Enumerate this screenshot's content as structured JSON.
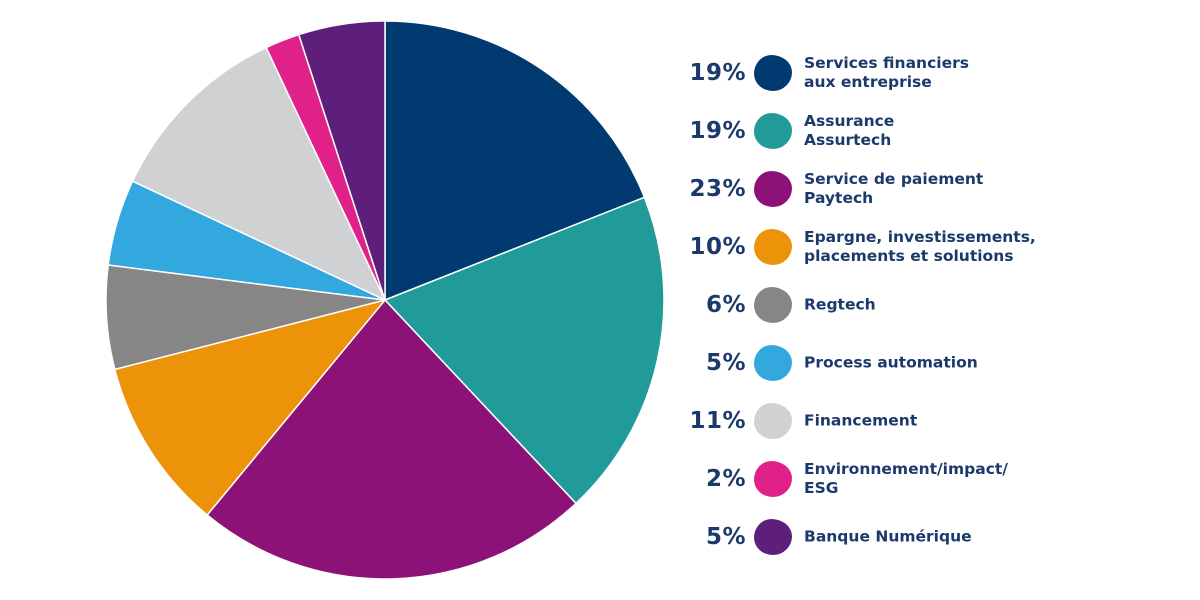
{
  "chart_data": {
    "type": "pie",
    "start": "top",
    "direction": "clockwise",
    "slices": [
      {
        "label": "Services financiers\naux entreprise",
        "pct_label": "19%",
        "value": 19,
        "color": "#003a70"
      },
      {
        "label": "Assurance\nAssurtech",
        "pct_label": "19%",
        "value": 19,
        "color": "#219b9a"
      },
      {
        "label": "Service de paiement\nPaytech",
        "pct_label": "23%",
        "value": 23,
        "color": "#8c1278"
      },
      {
        "label": "Epargne, investissements,\nplacements et solutions",
        "pct_label": "10%",
        "value": 10,
        "color": "#ec9309"
      },
      {
        "label": "Regtech",
        "pct_label": "6%",
        "value": 6,
        "color": "#868686"
      },
      {
        "label": "Process automation",
        "pct_label": "5%",
        "value": 5,
        "color": "#33a8df"
      },
      {
        "label": "Financement",
        "pct_label": "11%",
        "value": 11,
        "color": "#d0d1d3"
      },
      {
        "label": "Environnement/impact/\nESG",
        "pct_label": "2%",
        "value": 2,
        "color": "#e0218a"
      },
      {
        "label": "Banque Numérique",
        "pct_label": "5%",
        "value": 5,
        "color": "#5e1f7a"
      }
    ]
  }
}
